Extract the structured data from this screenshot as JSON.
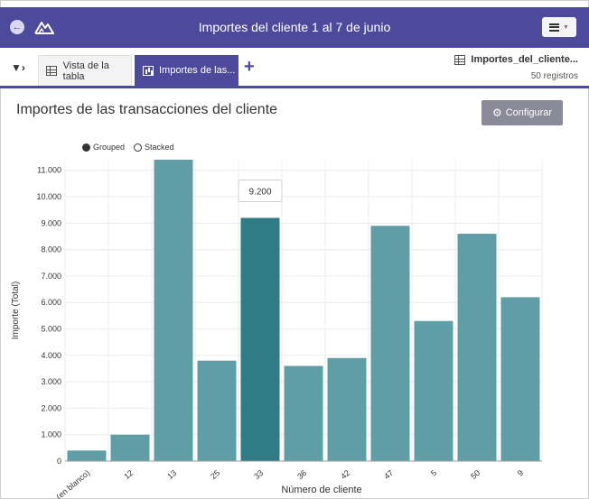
{
  "header": {
    "title": "Importes del cliente 1 al 7 de junio"
  },
  "tabs": [
    {
      "label": "Vista de la tabla"
    },
    {
      "label": "Importes de las..."
    }
  ],
  "source": {
    "name": "Importes_del_cliente...",
    "count": "50 registros"
  },
  "main": {
    "title": "Importes de las transacciones del cliente",
    "configure_label": "Configurar"
  },
  "legend": {
    "grouped": "Grouped",
    "stacked": "Stacked",
    "selected": "grouped"
  },
  "colors": {
    "header": "#4e4a9b",
    "bar": "#5f9ea6",
    "bar_highlight": "#2f7c86"
  },
  "chart_data": {
    "type": "bar",
    "categories": [
      "(en blanco)",
      "12",
      "13",
      "25",
      "33",
      "36",
      "42",
      "47",
      "5",
      "50",
      "9"
    ],
    "values": [
      400,
      1000,
      11400,
      3800,
      9200,
      3600,
      3900,
      8900,
      5300,
      8600,
      6200
    ],
    "highlighted_index": 4,
    "tooltip": "9.200",
    "xlabel": "Número de cliente",
    "ylabel": "Importe (Total)",
    "ylim": [
      0,
      11400
    ],
    "yticks": [
      "0",
      "1.000",
      "2.000",
      "3.000",
      "4.000",
      "5.000",
      "6.000",
      "7.000",
      "8.000",
      "9.000",
      "10.000",
      "11.000"
    ],
    "grid": true
  }
}
